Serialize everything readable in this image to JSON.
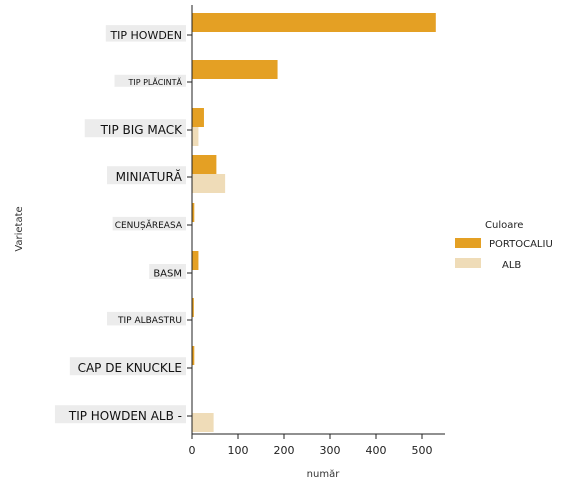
{
  "chart_data": {
    "type": "bar",
    "orientation": "horizontal",
    "title": "",
    "xlabel": "număr",
    "ylabel": "Varietate",
    "xlim": [
      0,
      550
    ],
    "x_ticks": [
      0,
      100,
      200,
      300,
      400,
      500
    ],
    "categories": [
      "TIP HOWDEN",
      "TIP PLĂCINTĂ",
      "TIP BIG MACK",
      "MINIATURĂ",
      "CENUȘĂREASA",
      "BASM",
      "TIP ALBASTRU",
      "CAP DE KNUCKLE",
      "TIP HOWDEN ALB -"
    ],
    "series": [
      {
        "name": "PORTOCALIU",
        "color": "#e4a024",
        "values": [
          530,
          186,
          26,
          53,
          5,
          14,
          4,
          5,
          0
        ]
      },
      {
        "name": "ALB",
        "color": "#efdcb8",
        "values": [
          0,
          0,
          14,
          72,
          0,
          0,
          0,
          0,
          47
        ]
      }
    ],
    "legend": {
      "title": "Culoare",
      "position": "right"
    },
    "grid": false
  }
}
